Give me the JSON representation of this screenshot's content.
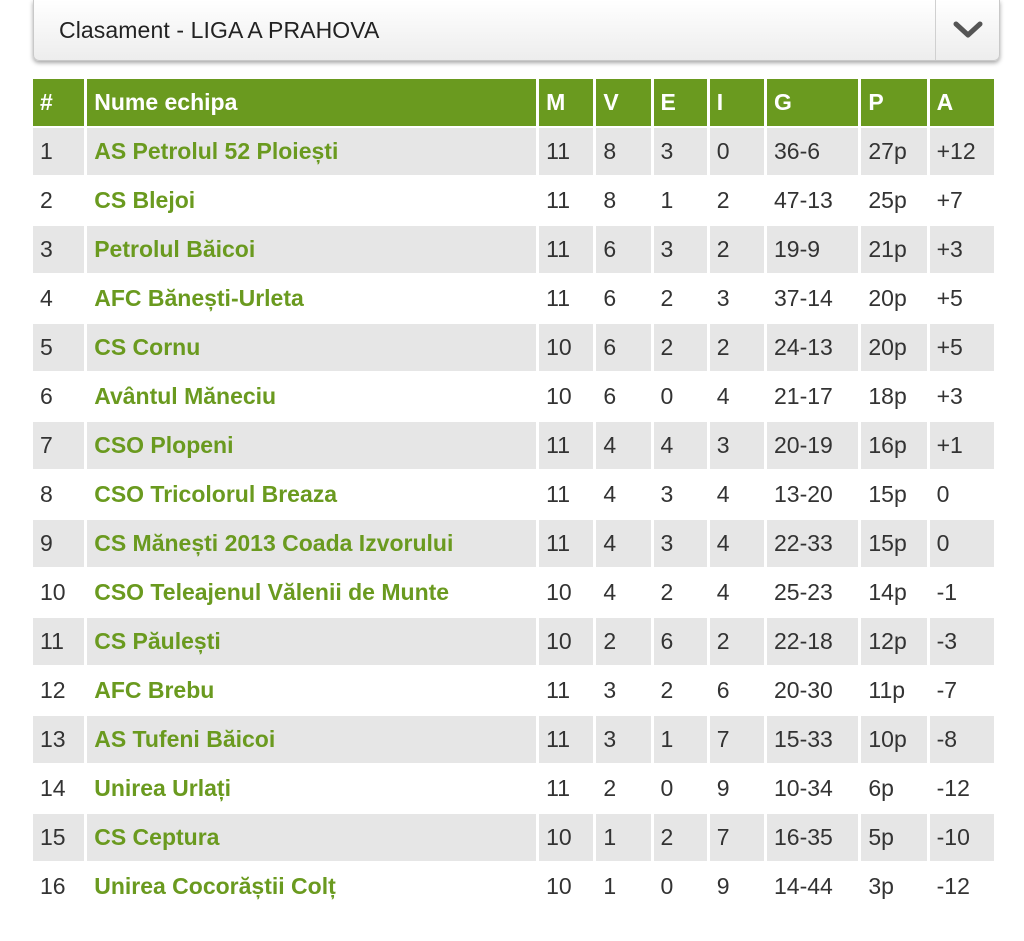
{
  "header": {
    "title": "Clasament - LIGA A PRAHOVA"
  },
  "table": {
    "columns": [
      "#",
      "Nume echipa",
      "M",
      "V",
      "E",
      "I",
      "G",
      "P",
      "A"
    ],
    "rows": [
      [
        "1",
        "AS Petrolul 52 Ploiești",
        "11",
        "8",
        "3",
        "0",
        "36-6",
        "27p",
        "+12"
      ],
      [
        "2",
        "CS Blejoi",
        "11",
        "8",
        "1",
        "2",
        "47-13",
        "25p",
        "+7"
      ],
      [
        "3",
        "Petrolul Băicoi",
        "11",
        "6",
        "3",
        "2",
        "19-9",
        "21p",
        "+3"
      ],
      [
        "4",
        "AFC Bănești-Urleta",
        "11",
        "6",
        "2",
        "3",
        "37-14",
        "20p",
        "+5"
      ],
      [
        "5",
        "CS Cornu",
        "10",
        "6",
        "2",
        "2",
        "24-13",
        "20p",
        "+5"
      ],
      [
        "6",
        "Avântul Măneciu",
        "10",
        "6",
        "0",
        "4",
        "21-17",
        "18p",
        "+3"
      ],
      [
        "7",
        "CSO Plopeni",
        "11",
        "4",
        "4",
        "3",
        "20-19",
        "16p",
        "+1"
      ],
      [
        "8",
        "CSO Tricolorul Breaza",
        "11",
        "4",
        "3",
        "4",
        "13-20",
        "15p",
        "0"
      ],
      [
        "9",
        "CS Mănești 2013 Coada Izvorului",
        "11",
        "4",
        "3",
        "4",
        "22-33",
        "15p",
        "0"
      ],
      [
        "10",
        "CSO Teleajenul Vălenii de Munte",
        "10",
        "4",
        "2",
        "4",
        "25-23",
        "14p",
        "-1"
      ],
      [
        "11",
        "CS Păulești",
        "10",
        "2",
        "6",
        "2",
        "22-18",
        "12p",
        "-3"
      ],
      [
        "12",
        "AFC Brebu",
        "11",
        "3",
        "2",
        "6",
        "20-30",
        "11p",
        "-7"
      ],
      [
        "13",
        "AS Tufeni Băicoi",
        "11",
        "3",
        "1",
        "7",
        "15-33",
        "10p",
        "-8"
      ],
      [
        "14",
        "Unirea Urlați",
        "11",
        "2",
        "0",
        "9",
        "10-34",
        "6p",
        "-12"
      ],
      [
        "15",
        "CS Ceptura",
        "10",
        "1",
        "2",
        "7",
        "16-35",
        "5p",
        "-10"
      ],
      [
        "16",
        "Unirea Cocorăștii Colț",
        "10",
        "1",
        "0",
        "9",
        "14-44",
        "3p",
        "-12"
      ]
    ]
  },
  "colors": {
    "accent": "#6a9a1f",
    "row_alt": "#e6e6e6",
    "header_text": "#ffffff"
  },
  "icons": {
    "toggle": "chevron-down-icon"
  }
}
